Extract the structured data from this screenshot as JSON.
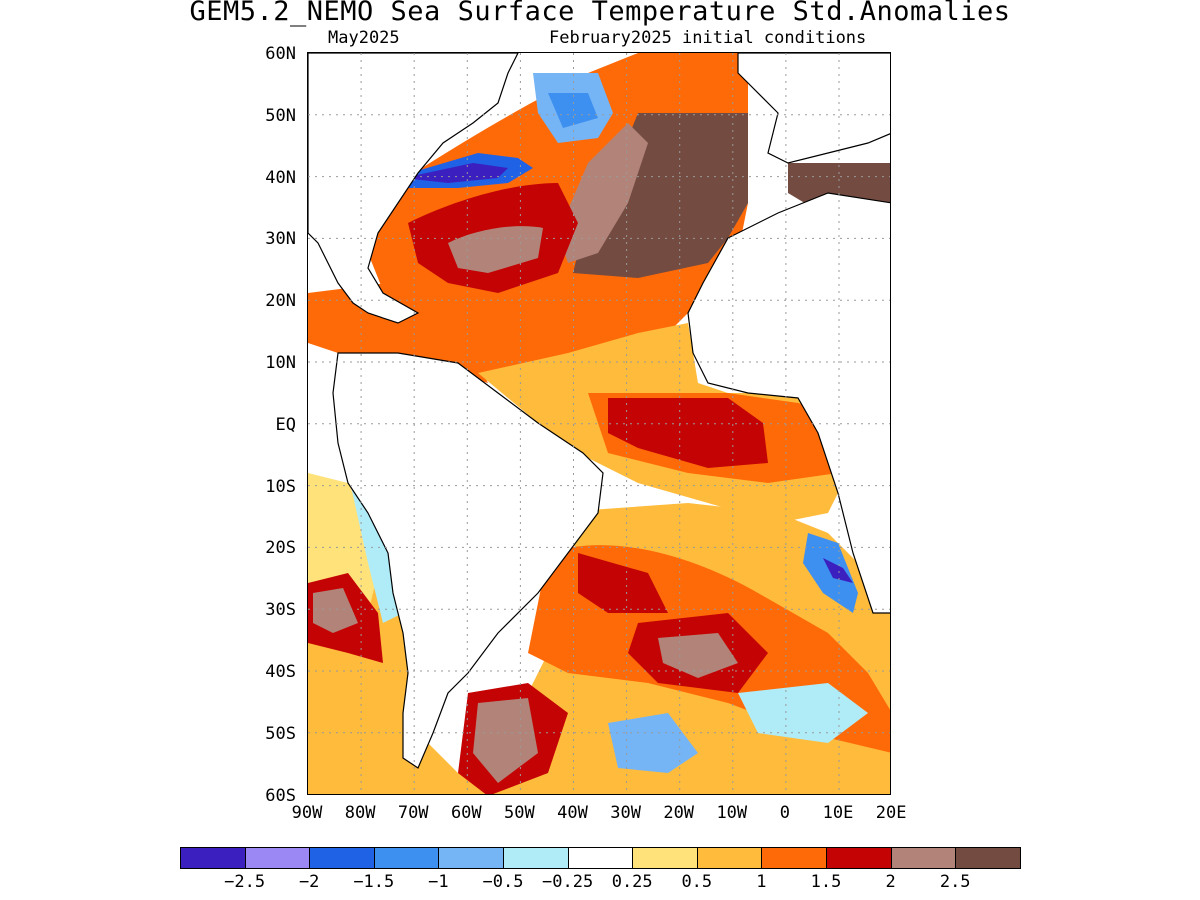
{
  "header": {
    "title": "GEM5.2_NEMO Sea Surface Temperature Std.Anomalies",
    "forecast_month": "May2025",
    "init_conditions": "February2025 initial conditions"
  },
  "map": {
    "region": "Atlantic Ocean",
    "lat_labels": [
      "60N",
      "50N",
      "40N",
      "30N",
      "20N",
      "10N",
      "EQ",
      "10S",
      "20S",
      "30S",
      "40S",
      "50S",
      "60S"
    ],
    "lon_labels": [
      "90W",
      "80W",
      "70W",
      "60W",
      "50W",
      "40W",
      "30W",
      "20W",
      "10W",
      "0",
      "10E",
      "20E"
    ],
    "grid": "dotted"
  },
  "colorbar": {
    "colors": [
      "#3b1fbf",
      "#9c88f5",
      "#1f62e6",
      "#3d8ff0",
      "#75b5f5",
      "#b0ecf8",
      "#ffffff",
      "#ffe27a",
      "#ffbb3c",
      "#ff6a08",
      "#c40404",
      "#b28479",
      "#734b41"
    ],
    "labels": [
      "−2.5",
      "−2",
      "−1.5",
      "−1",
      "−0.5",
      "−0.25",
      "0.25",
      "0.5",
      "1",
      "1.5",
      "2",
      "2.5"
    ]
  }
}
